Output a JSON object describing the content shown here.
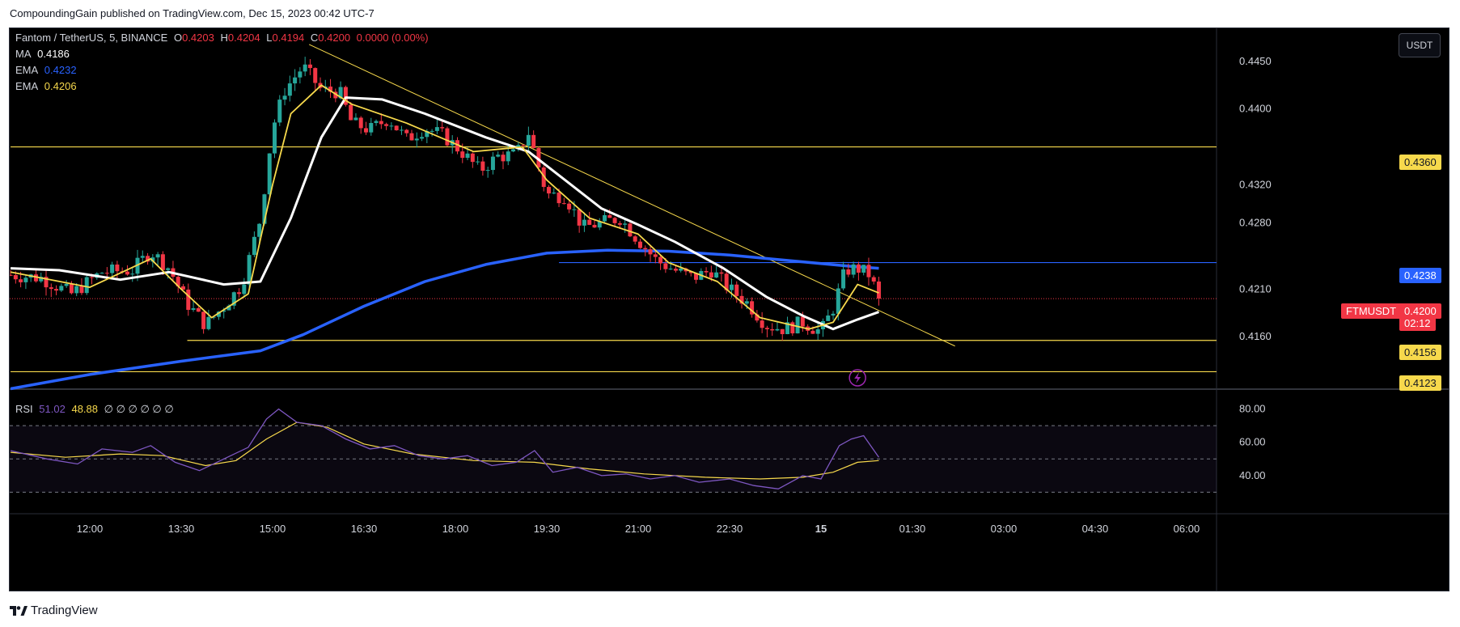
{
  "header": {
    "published_text": "CompoundingGain published on TradingView.com, Dec 15, 2023 00:42 UTC-7"
  },
  "footer": {
    "brand": "TradingView"
  },
  "legend": {
    "symbol": "Fantom / TetherUS, 5, BINANCE",
    "o_label": "O",
    "o_value": "0.4203",
    "h_label": "H",
    "h_value": "0.4204",
    "l_label": "L",
    "l_value": "0.4194",
    "c_label": "C",
    "c_value": "0.4200",
    "change": "0.0000 (0.00%)",
    "ma_label": "MA",
    "ma_value": "0.4186",
    "ema1_label": "EMA",
    "ema1_value": "0.4232",
    "ema2_label": "EMA",
    "ema2_value": "0.4206"
  },
  "rsi_legend": {
    "label": "RSI",
    "value1": "51.02",
    "value2": "48.88",
    "extras": "∅ ∅ ∅ ∅ ∅ ∅"
  },
  "currency_button": "USDT",
  "price_badges": {
    "level_4360": "0.4360",
    "level_4238": "0.4238",
    "level_4156": "0.4156",
    "level_4123": "0.4123",
    "symbol_tag": "FTMUSDT",
    "last_price": "0.4200",
    "countdown": "02:12"
  },
  "colors": {
    "bull": "#26a69a",
    "bear": "#f23645",
    "ma_white": "#ffffff",
    "ema_blue": "#2962ff",
    "ema_yellow": "#f7d94c",
    "level_yellow": "#f7d94c",
    "rsi_purple": "#7e57c2",
    "rsi_ma_yellow": "#f7d94c",
    "last_price_red": "#f23645"
  },
  "icons": {
    "flash_icon": "lightning-bolt-icon",
    "logo_icon": "tradingview-logo-icon"
  },
  "chart_data": [
    {
      "type": "candlestick",
      "title": "Fantom / TetherUS, 5, BINANCE",
      "ylim": [
        0.4108,
        0.4485
      ],
      "y_ticks": [
        0.445,
        0.44,
        0.432,
        0.428,
        0.421,
        0.416
      ],
      "x_ticks": [
        "12:00",
        "13:30",
        "15:00",
        "16:30",
        "18:00",
        "19:30",
        "21:00",
        "22:30",
        "15",
        "01:30",
        "03:00",
        "04:30",
        "06:00"
      ],
      "x_ticks_hours": [
        12.0,
        13.5,
        15.0,
        16.5,
        18.0,
        19.5,
        21.0,
        22.5,
        24.0,
        25.5,
        27.0,
        28.5,
        30.0
      ],
      "price_path": [
        [
          10.7,
          0.4225
        ],
        [
          11.2,
          0.4222
        ],
        [
          11.7,
          0.4205
        ],
        [
          12.2,
          0.4228
        ],
        [
          12.7,
          0.423
        ],
        [
          13.0,
          0.425
        ],
        [
          13.3,
          0.4232
        ],
        [
          13.6,
          0.4195
        ],
        [
          13.9,
          0.4172
        ],
        [
          14.2,
          0.4192
        ],
        [
          14.5,
          0.4215
        ],
        [
          14.8,
          0.4285
        ],
        [
          15.0,
          0.438
        ],
        [
          15.2,
          0.442
        ],
        [
          15.5,
          0.4445
        ],
        [
          15.8,
          0.442
        ],
        [
          16.1,
          0.4418
        ],
        [
          16.3,
          0.4385
        ],
        [
          16.6,
          0.4378
        ],
        [
          16.9,
          0.439
        ],
        [
          17.2,
          0.4368
        ],
        [
          17.5,
          0.438
        ],
        [
          17.8,
          0.4372
        ],
        [
          18.1,
          0.4355
        ],
        [
          18.4,
          0.4335
        ],
        [
          18.7,
          0.435
        ],
        [
          19.0,
          0.4352
        ],
        [
          19.2,
          0.4375
        ],
        [
          19.5,
          0.431
        ],
        [
          19.8,
          0.4308
        ],
        [
          20.1,
          0.4275
        ],
        [
          20.4,
          0.428
        ],
        [
          20.7,
          0.4285
        ],
        [
          21.0,
          0.4262
        ],
        [
          21.3,
          0.424
        ],
        [
          21.6,
          0.423
        ],
        [
          21.9,
          0.4222
        ],
        [
          22.2,
          0.423
        ],
        [
          22.5,
          0.421
        ],
        [
          22.8,
          0.4195
        ],
        [
          23.1,
          0.4172
        ],
        [
          23.4,
          0.4168
        ],
        [
          23.7,
          0.4175
        ],
        [
          24.0,
          0.4165
        ],
        [
          24.2,
          0.419
        ],
        [
          24.4,
          0.423
        ],
        [
          24.6,
          0.4232
        ],
        [
          24.8,
          0.4225
        ],
        [
          24.95,
          0.42
        ]
      ],
      "indicators": {
        "ma_white": [
          [
            10.7,
            0.4232
          ],
          [
            11.5,
            0.423
          ],
          [
            12.5,
            0.422
          ],
          [
            13.3,
            0.4228
          ],
          [
            14.2,
            0.4215
          ],
          [
            14.8,
            0.4218
          ],
          [
            15.3,
            0.4285
          ],
          [
            15.8,
            0.437
          ],
          [
            16.2,
            0.4412
          ],
          [
            16.8,
            0.441
          ],
          [
            17.5,
            0.4395
          ],
          [
            18.5,
            0.437
          ],
          [
            19.2,
            0.4355
          ],
          [
            19.8,
            0.4325
          ],
          [
            20.4,
            0.4295
          ],
          [
            21.0,
            0.4278
          ],
          [
            21.6,
            0.426
          ],
          [
            22.4,
            0.4232
          ],
          [
            23.1,
            0.4202
          ],
          [
            23.7,
            0.4182
          ],
          [
            24.2,
            0.4168
          ],
          [
            24.6,
            0.4178
          ],
          [
            24.95,
            0.4186
          ]
        ],
        "ema_yellow": [
          [
            10.7,
            0.4228
          ],
          [
            12.0,
            0.4212
          ],
          [
            13.0,
            0.4242
          ],
          [
            13.5,
            0.421
          ],
          [
            14.0,
            0.418
          ],
          [
            14.6,
            0.4205
          ],
          [
            15.0,
            0.432
          ],
          [
            15.3,
            0.4395
          ],
          [
            15.8,
            0.4425
          ],
          [
            16.3,
            0.4405
          ],
          [
            17.2,
            0.4385
          ],
          [
            18.3,
            0.4355
          ],
          [
            19.1,
            0.436
          ],
          [
            19.5,
            0.4325
          ],
          [
            20.2,
            0.4285
          ],
          [
            21.0,
            0.4268
          ],
          [
            21.5,
            0.4238
          ],
          [
            22.3,
            0.4218
          ],
          [
            23.0,
            0.418
          ],
          [
            23.8,
            0.4168
          ],
          [
            24.2,
            0.4175
          ],
          [
            24.6,
            0.4215
          ],
          [
            24.95,
            0.4206
          ]
        ],
        "ema_blue": [
          [
            10.7,
            0.4105
          ],
          [
            12.0,
            0.412
          ],
          [
            13.5,
            0.4134
          ],
          [
            14.8,
            0.4145
          ],
          [
            15.5,
            0.4162
          ],
          [
            16.5,
            0.4192
          ],
          [
            17.5,
            0.4218
          ],
          [
            18.5,
            0.4236
          ],
          [
            19.5,
            0.4248
          ],
          [
            20.5,
            0.4251
          ],
          [
            21.5,
            0.425
          ],
          [
            22.5,
            0.4246
          ],
          [
            23.5,
            0.424
          ],
          [
            24.5,
            0.4234
          ],
          [
            24.95,
            0.4232
          ]
        ]
      },
      "trendline": {
        "x": [
          15.6,
          26.2
        ],
        "y": [
          0.4468,
          0.415
        ]
      },
      "horizontal_levels": [
        {
          "price": 0.436,
          "x_start": 10.7,
          "color": "#f7d94c"
        },
        {
          "price": 0.4238,
          "x_start": 19.7,
          "color": "#2962ff"
        },
        {
          "price": 0.4156,
          "x_start": 13.6,
          "color": "#f7d94c"
        },
        {
          "price": 0.4123,
          "x_start": 10.7,
          "color": "#f7d94c"
        }
      ],
      "last_price": 0.42
    },
    {
      "type": "line",
      "title": "RSI",
      "ylim": [
        20,
        90
      ],
      "y_ticks": [
        80.0,
        60.0,
        40.0
      ],
      "bands": [
        70,
        50,
        30
      ],
      "series": [
        {
          "values": [
            [
              10.7,
              55
            ],
            [
              11.3,
              50
            ],
            [
              11.8,
              47
            ],
            [
              12.2,
              56
            ],
            [
              12.7,
              54
            ],
            [
              13.0,
              58
            ],
            [
              13.4,
              48
            ],
            [
              13.8,
              43
            ],
            [
              14.2,
              50
            ],
            [
              14.6,
              57
            ],
            [
              14.9,
              74
            ],
            [
              15.1,
              80
            ],
            [
              15.4,
              72
            ],
            [
              15.8,
              70
            ],
            [
              16.2,
              62
            ],
            [
              16.6,
              56
            ],
            [
              17.0,
              58
            ],
            [
              17.4,
              52
            ],
            [
              17.8,
              50
            ],
            [
              18.2,
              52
            ],
            [
              18.6,
              46
            ],
            [
              19.0,
              48
            ],
            [
              19.3,
              55
            ],
            [
              19.6,
              42
            ],
            [
              20.0,
              45
            ],
            [
              20.4,
              40
            ],
            [
              20.8,
              41
            ],
            [
              21.2,
              38
            ],
            [
              21.6,
              40
            ],
            [
              22.0,
              36
            ],
            [
              22.5,
              38
            ],
            [
              22.9,
              34
            ],
            [
              23.3,
              32
            ],
            [
              23.7,
              40
            ],
            [
              24.0,
              38
            ],
            [
              24.3,
              58
            ],
            [
              24.5,
              62
            ],
            [
              24.7,
              64
            ],
            [
              24.95,
              51
            ]
          ]
        },
        {
          "values": [
            [
              10.7,
              54
            ],
            [
              11.6,
              51
            ],
            [
              12.5,
              53
            ],
            [
              13.2,
              52
            ],
            [
              13.9,
              46
            ],
            [
              14.4,
              49
            ],
            [
              14.9,
              62
            ],
            [
              15.4,
              72
            ],
            [
              15.9,
              69
            ],
            [
              16.5,
              59
            ],
            [
              17.3,
              53
            ],
            [
              18.3,
              49
            ],
            [
              19.3,
              48
            ],
            [
              20.2,
              44
            ],
            [
              21.1,
              41
            ],
            [
              22.1,
              39
            ],
            [
              23.0,
              38
            ],
            [
              23.7,
              39
            ],
            [
              24.2,
              42
            ],
            [
              24.6,
              48
            ],
            [
              24.95,
              49
            ]
          ]
        }
      ]
    }
  ]
}
